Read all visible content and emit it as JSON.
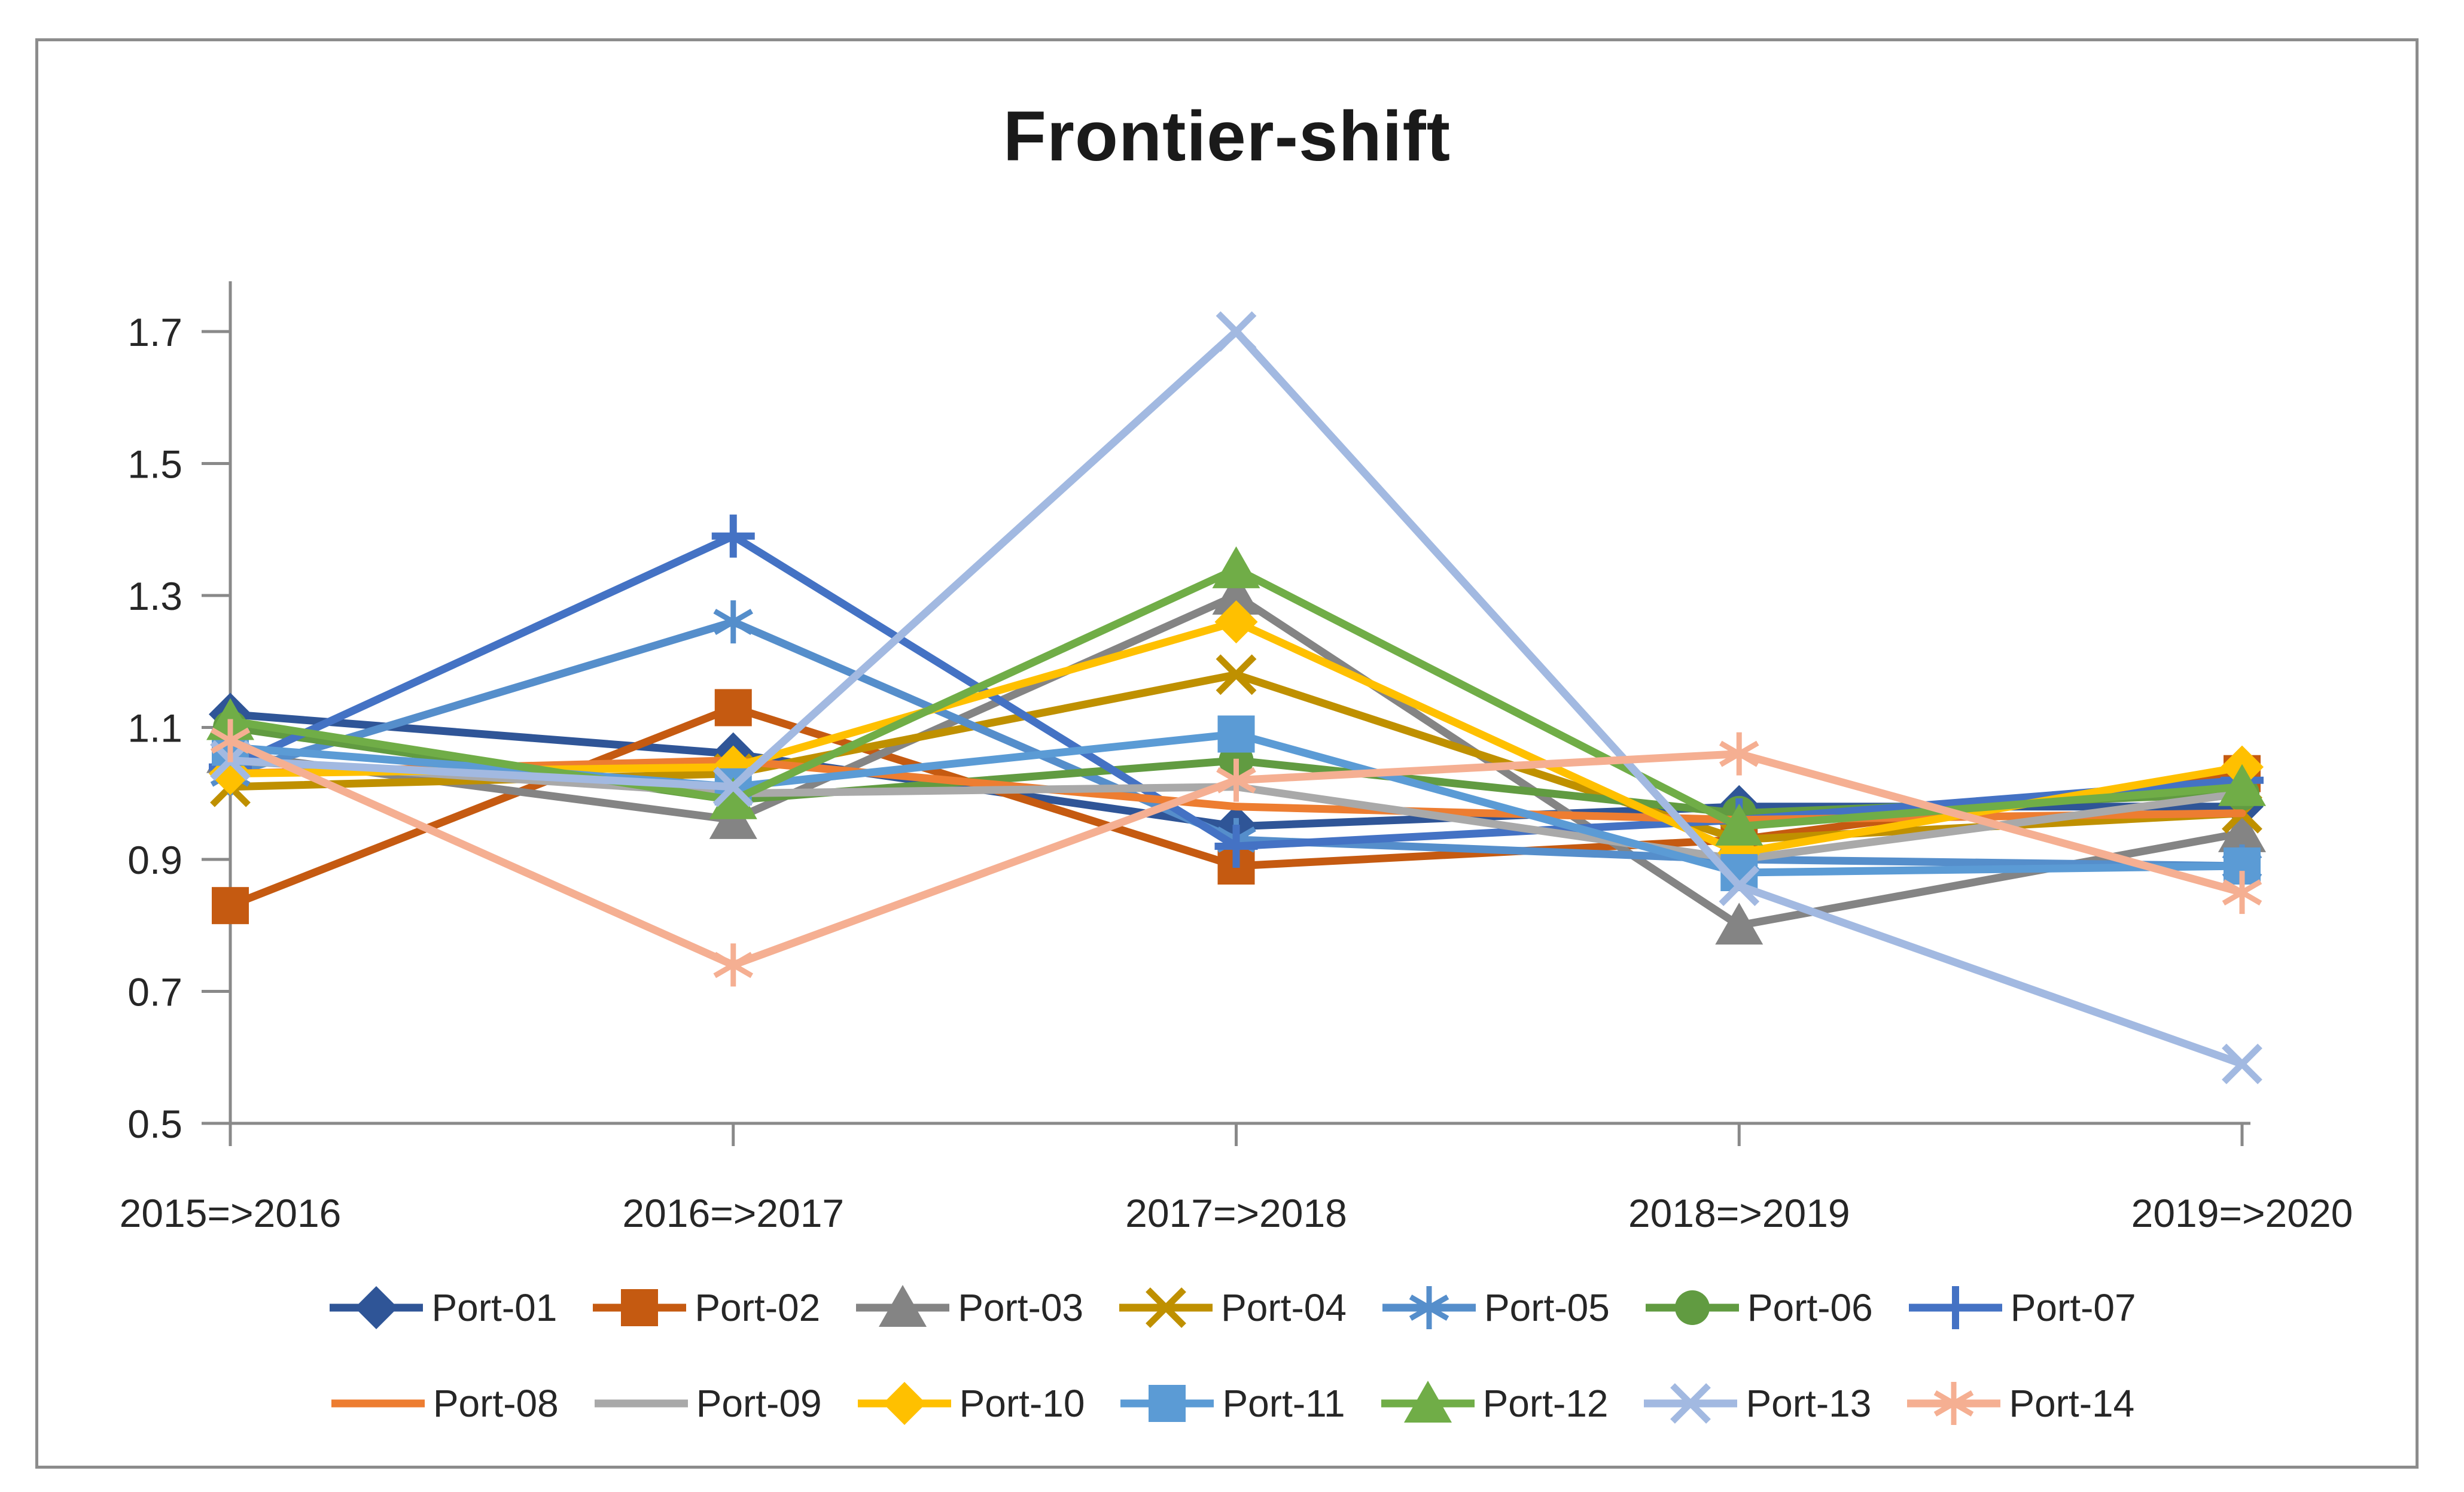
{
  "frame": {
    "border_color": "#8C8C8C",
    "background": "#FFFFFF"
  },
  "chart_data": {
    "type": "line",
    "title": "Frontier-shift",
    "categories": [
      "2015=>2016",
      "2016=>2017",
      "2017=>2018",
      "2018=>2019",
      "2019=>2020"
    ],
    "series": [
      {
        "name": "Port-01",
        "color": "#2F5597",
        "marker": "diamond",
        "values": [
          1.12,
          1.06,
          0.95,
          0.98,
          0.98
        ]
      },
      {
        "name": "Port-02",
        "color": "#C55A11",
        "marker": "square",
        "values": [
          0.83,
          1.13,
          0.89,
          0.93,
          1.03
        ]
      },
      {
        "name": "Port-03",
        "color": "#848484",
        "marker": "triangle",
        "values": [
          1.06,
          0.96,
          1.3,
          0.8,
          0.94
        ]
      },
      {
        "name": "Port-04",
        "color": "#BF9000",
        "marker": "x",
        "values": [
          1.01,
          1.03,
          1.18,
          0.93,
          0.97
        ]
      },
      {
        "name": "Port-05",
        "color": "#558ECB",
        "marker": "asterisk",
        "values": [
          1.03,
          1.26,
          0.93,
          0.9,
          0.89
        ]
      },
      {
        "name": "Port-06",
        "color": "#619B41",
        "marker": "circle",
        "values": [
          1.1,
          0.99,
          1.05,
          0.97,
          1.0
        ]
      },
      {
        "name": "Port-07",
        "color": "#4472C4",
        "marker": "plus",
        "values": [
          1.04,
          1.39,
          0.92,
          0.96,
          1.02
        ]
      },
      {
        "name": "Port-08",
        "color": "#ED7D31",
        "marker": "none",
        "values": [
          1.03,
          1.05,
          0.98,
          0.96,
          0.97
        ]
      },
      {
        "name": "Port-09",
        "color": "#A9A9A9",
        "marker": "none",
        "values": [
          1.05,
          1.0,
          1.01,
          0.9,
          1.0
        ]
      },
      {
        "name": "Port-10",
        "color": "#FFC000",
        "marker": "diamond",
        "values": [
          1.03,
          1.04,
          1.26,
          0.91,
          1.04
        ]
      },
      {
        "name": "Port-11",
        "color": "#5B9BD5",
        "marker": "square",
        "values": [
          1.07,
          1.01,
          1.09,
          0.88,
          0.89
        ]
      },
      {
        "name": "Port-12",
        "color": "#70AD47",
        "marker": "triangle",
        "values": [
          1.11,
          0.99,
          1.34,
          0.95,
          1.01
        ]
      },
      {
        "name": "Port-13",
        "color": "#A2B9E1",
        "marker": "x",
        "values": [
          1.05,
          1.01,
          1.7,
          0.86,
          0.59
        ]
      },
      {
        "name": "Port-14",
        "color": "#F5AF92",
        "marker": "asterisk",
        "values": [
          1.08,
          0.74,
          1.02,
          1.06,
          0.85
        ]
      }
    ],
    "ylim": [
      0.5,
      1.7
    ],
    "yticks": [
      0.5,
      0.7,
      0.9,
      1.1,
      1.3,
      1.5,
      1.7
    ],
    "grid": false,
    "legend_position": "bottom",
    "legend_rows": [
      7,
      7
    ],
    "axis_color": "#898989",
    "tick_label_color": "#262626",
    "title_color": "#1A1A1A"
  }
}
